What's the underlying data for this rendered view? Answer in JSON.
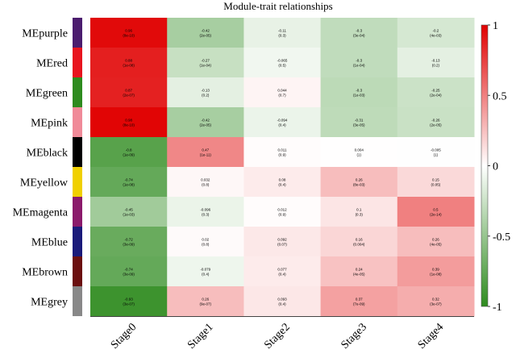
{
  "chart_data": {
    "type": "heatmap",
    "title": "Module-trait relationships",
    "columns": [
      "Stage0",
      "Stage1",
      "Stage2",
      "Stage3",
      "Stage4"
    ],
    "rows": [
      {
        "name": "MEpurple",
        "color": "#4b1c6e",
        "values": [
          0.96,
          -0.42,
          -0.11,
          -0.3,
          -0.2
        ],
        "labels": [
          "0.96\n(8e-10)",
          "-0.42\n(2e-05)",
          "-0.11\n(0.3)",
          "-0.3\n(3e-04)",
          "-0.2\n(4e-03)"
        ]
      },
      {
        "name": "MEred",
        "color": "#e8141e",
        "values": [
          0.88,
          -0.27,
          -0.065,
          -0.3,
          -0.13
        ],
        "labels": [
          "0.88\n(1e-08)",
          "-0.27\n(1e-04)",
          "-0.065\n(0.5)",
          "-0.3\n(1e-04)",
          "-0.13\n(0.2)"
        ]
      },
      {
        "name": "MEgreen",
        "color": "#2e8b1e",
        "values": [
          0.87,
          -0.13,
          0.044,
          -0.32,
          -0.25
        ],
        "labels": [
          "0.87\n(2e-07)",
          "-0.13\n(0.2)",
          "0.044\n(0.7)",
          "-0.3\n(1e-03)",
          "-0.25\n(2e-04)"
        ]
      },
      {
        "name": "MEpink",
        "color": "#f08a98",
        "values": [
          0.98,
          -0.42,
          -0.094,
          -0.31,
          -0.26
        ],
        "labels": [
          "0.98\n(8e-10)",
          "-0.42\n(2e-05)",
          "-0.094\n(0.4)",
          "-0.31\n(3e-05)",
          "-0.26\n(2e-05)"
        ]
      },
      {
        "name": "MEblack",
        "color": "#000000",
        "values": [
          -0.8,
          0.47,
          0.011,
          0.004,
          -0.005
        ],
        "labels": [
          "-0.8\n(1e-09)",
          "0.47\n(1e-11)",
          "0.011\n(0.9)",
          "0.004\n(1)",
          "-0.005\n(1)"
        ]
      },
      {
        "name": "MEyellow",
        "color": "#f0d000",
        "values": [
          -0.74,
          0.032,
          0.08,
          0.26,
          0.15
        ],
        "labels": [
          "-0.74\n(1e-08)",
          "0.032\n(0.8)",
          "0.08\n(0.4)",
          "0.26\n(8e-03)",
          "0.15\n(0.05)"
        ]
      },
      {
        "name": "MEmagenta",
        "color": "#8b1a6b",
        "values": [
          -0.45,
          -0.096,
          0.012,
          0.1,
          0.5
        ],
        "labels": [
          "-0.45\n(1e-03)",
          "-0.096\n(0.3)",
          "0.012\n(0.9)",
          "0.1\n(0.3)",
          "0.5\n(2e-14)"
        ]
      },
      {
        "name": "MEblue",
        "color": "#1a1a7a",
        "values": [
          -0.72,
          0.02,
          0.092,
          0.16,
          0.26
        ],
        "labels": [
          "-0.72\n(3e-09)",
          "0.02\n(0.8)",
          "0.092\n(0.07)",
          "0.16\n(0.004)",
          "0.26\n(4e-05)"
        ]
      },
      {
        "name": "MEbrown",
        "color": "#6b0f0f",
        "values": [
          -0.74,
          -0.079,
          0.077,
          0.24,
          0.39
        ],
        "labels": [
          "-0.74\n(3e-09)",
          "-0.079\n(0.4)",
          "0.077\n(0.4)",
          "0.24\n(4e-05)",
          "0.39\n(1e-08)"
        ]
      },
      {
        "name": "MEgrey",
        "color": "#888888",
        "values": [
          -0.93,
          0.26,
          0.093,
          0.37,
          0.32
        ],
        "labels": [
          "-0.93\n(3e-07)",
          "0.26\n(9e-07)",
          "0.093\n(0.4)",
          "0.37\n(7e-09)",
          "0.32\n(3e-07)"
        ]
      }
    ],
    "scale": {
      "min": -1,
      "max": 1,
      "low_color": "#2e8b1e",
      "mid_color": "#ffffff",
      "high_color": "#e00000",
      "ticks": [
        "1",
        "0.5",
        "0",
        "-0.5",
        "-1"
      ]
    }
  }
}
